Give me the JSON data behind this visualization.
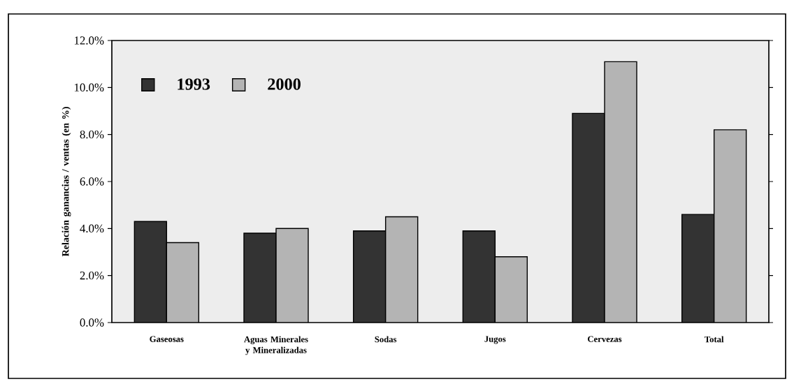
{
  "chart_data": {
    "type": "bar",
    "ylabel": "Relación ganancias / ventas (en %)",
    "categories": [
      "Gaseosas",
      "Aguas Minerales y Mineralizadas",
      "Sodas",
      "Jugos",
      "Cervezas",
      "Total"
    ],
    "series": [
      {
        "name": "1993",
        "color": "#333333",
        "values": [
          4.3,
          3.8,
          3.9,
          3.9,
          8.9,
          4.6
        ]
      },
      {
        "name": "2000",
        "color": "#b4b4b4",
        "values": [
          3.4,
          4.0,
          4.5,
          2.8,
          11.1,
          8.2
        ]
      }
    ],
    "ylim": [
      0,
      12
    ],
    "yticks": [
      {
        "value": 0,
        "label": "0.0%"
      },
      {
        "value": 2,
        "label": "2.0%"
      },
      {
        "value": 4,
        "label": "4.0%"
      },
      {
        "value": 6,
        "label": "6.0%"
      },
      {
        "value": 8,
        "label": "8.0%"
      },
      {
        "value": 10,
        "label": "10.0%"
      },
      {
        "value": 12,
        "label": "12.0%"
      }
    ],
    "legend": "top left"
  }
}
